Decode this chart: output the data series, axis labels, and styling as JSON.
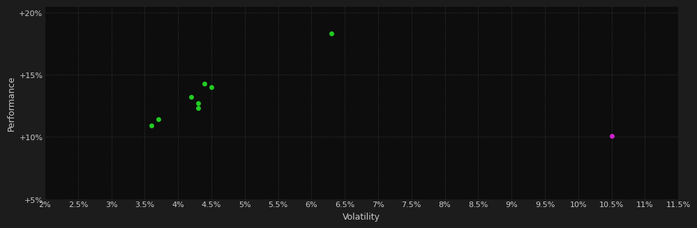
{
  "background_color": "#1c1c1c",
  "plot_bg_color": "#0d0d0d",
  "grid_color": "#3a3a3a",
  "text_color": "#cccccc",
  "xlabel": "Volatility",
  "ylabel": "Performance",
  "xlim": [
    0.02,
    0.115
  ],
  "ylim": [
    0.05,
    0.205
  ],
  "xticks": [
    0.02,
    0.025,
    0.03,
    0.035,
    0.04,
    0.045,
    0.05,
    0.055,
    0.06,
    0.065,
    0.07,
    0.075,
    0.08,
    0.085,
    0.09,
    0.095,
    0.1,
    0.105,
    0.11,
    0.115
  ],
  "yticks": [
    0.05,
    0.1,
    0.15,
    0.2
  ],
  "ytick_labels": [
    "+5%",
    "+10%",
    "+15%",
    "+20%"
  ],
  "green_points": [
    [
      0.063,
      0.183
    ],
    [
      0.044,
      0.143
    ],
    [
      0.045,
      0.14
    ],
    [
      0.042,
      0.132
    ],
    [
      0.043,
      0.127
    ],
    [
      0.043,
      0.123
    ],
    [
      0.037,
      0.114
    ],
    [
      0.036,
      0.109
    ]
  ],
  "magenta_points": [
    [
      0.105,
      0.101
    ]
  ],
  "green_color": "#22cc22",
  "magenta_color": "#cc22cc",
  "marker_size": 5,
  "font_size_ticks": 8,
  "font_size_label": 9
}
